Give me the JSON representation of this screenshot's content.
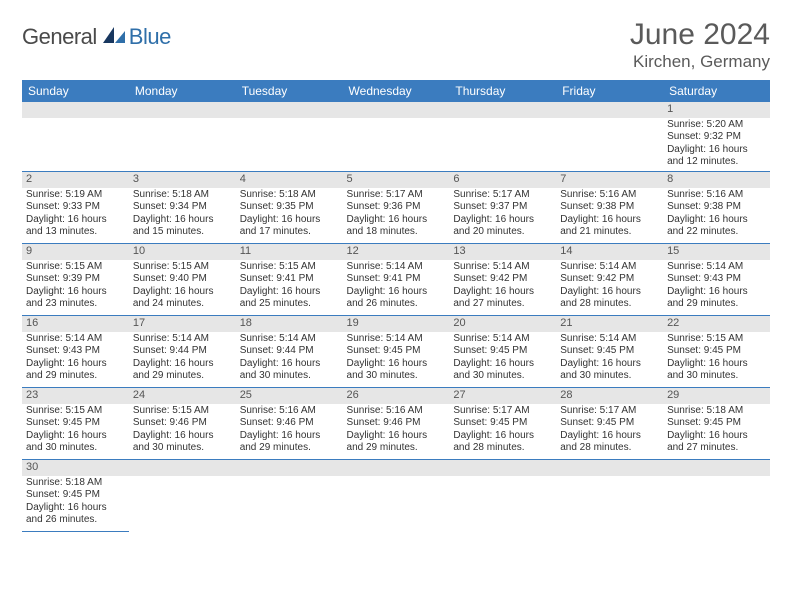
{
  "logo": {
    "dark": "General",
    "blue": "Blue"
  },
  "title": "June 2024",
  "location": "Kirchen, Germany",
  "colors": {
    "header_bg": "#3b7cbf",
    "header_fg": "#ffffff",
    "daylabel_bg": "#e6e6e6",
    "border": "#3b7cbf",
    "logo_blue": "#2f6fa9",
    "text": "#333333"
  },
  "weekdays": [
    "Sunday",
    "Monday",
    "Tuesday",
    "Wednesday",
    "Thursday",
    "Friday",
    "Saturday"
  ],
  "weeks": [
    [
      {
        "n": "",
        "sr": "",
        "ss": "",
        "dl": ""
      },
      {
        "n": "",
        "sr": "",
        "ss": "",
        "dl": ""
      },
      {
        "n": "",
        "sr": "",
        "ss": "",
        "dl": ""
      },
      {
        "n": "",
        "sr": "",
        "ss": "",
        "dl": ""
      },
      {
        "n": "",
        "sr": "",
        "ss": "",
        "dl": ""
      },
      {
        "n": "",
        "sr": "",
        "ss": "",
        "dl": ""
      },
      {
        "n": "1",
        "sr": "Sunrise: 5:20 AM",
        "ss": "Sunset: 9:32 PM",
        "dl": "Daylight: 16 hours and 12 minutes."
      }
    ],
    [
      {
        "n": "2",
        "sr": "Sunrise: 5:19 AM",
        "ss": "Sunset: 9:33 PM",
        "dl": "Daylight: 16 hours and 13 minutes."
      },
      {
        "n": "3",
        "sr": "Sunrise: 5:18 AM",
        "ss": "Sunset: 9:34 PM",
        "dl": "Daylight: 16 hours and 15 minutes."
      },
      {
        "n": "4",
        "sr": "Sunrise: 5:18 AM",
        "ss": "Sunset: 9:35 PM",
        "dl": "Daylight: 16 hours and 17 minutes."
      },
      {
        "n": "5",
        "sr": "Sunrise: 5:17 AM",
        "ss": "Sunset: 9:36 PM",
        "dl": "Daylight: 16 hours and 18 minutes."
      },
      {
        "n": "6",
        "sr": "Sunrise: 5:17 AM",
        "ss": "Sunset: 9:37 PM",
        "dl": "Daylight: 16 hours and 20 minutes."
      },
      {
        "n": "7",
        "sr": "Sunrise: 5:16 AM",
        "ss": "Sunset: 9:38 PM",
        "dl": "Daylight: 16 hours and 21 minutes."
      },
      {
        "n": "8",
        "sr": "Sunrise: 5:16 AM",
        "ss": "Sunset: 9:38 PM",
        "dl": "Daylight: 16 hours and 22 minutes."
      }
    ],
    [
      {
        "n": "9",
        "sr": "Sunrise: 5:15 AM",
        "ss": "Sunset: 9:39 PM",
        "dl": "Daylight: 16 hours and 23 minutes."
      },
      {
        "n": "10",
        "sr": "Sunrise: 5:15 AM",
        "ss": "Sunset: 9:40 PM",
        "dl": "Daylight: 16 hours and 24 minutes."
      },
      {
        "n": "11",
        "sr": "Sunrise: 5:15 AM",
        "ss": "Sunset: 9:41 PM",
        "dl": "Daylight: 16 hours and 25 minutes."
      },
      {
        "n": "12",
        "sr": "Sunrise: 5:14 AM",
        "ss": "Sunset: 9:41 PM",
        "dl": "Daylight: 16 hours and 26 minutes."
      },
      {
        "n": "13",
        "sr": "Sunrise: 5:14 AM",
        "ss": "Sunset: 9:42 PM",
        "dl": "Daylight: 16 hours and 27 minutes."
      },
      {
        "n": "14",
        "sr": "Sunrise: 5:14 AM",
        "ss": "Sunset: 9:42 PM",
        "dl": "Daylight: 16 hours and 28 minutes."
      },
      {
        "n": "15",
        "sr": "Sunrise: 5:14 AM",
        "ss": "Sunset: 9:43 PM",
        "dl": "Daylight: 16 hours and 29 minutes."
      }
    ],
    [
      {
        "n": "16",
        "sr": "Sunrise: 5:14 AM",
        "ss": "Sunset: 9:43 PM",
        "dl": "Daylight: 16 hours and 29 minutes."
      },
      {
        "n": "17",
        "sr": "Sunrise: 5:14 AM",
        "ss": "Sunset: 9:44 PM",
        "dl": "Daylight: 16 hours and 29 minutes."
      },
      {
        "n": "18",
        "sr": "Sunrise: 5:14 AM",
        "ss": "Sunset: 9:44 PM",
        "dl": "Daylight: 16 hours and 30 minutes."
      },
      {
        "n": "19",
        "sr": "Sunrise: 5:14 AM",
        "ss": "Sunset: 9:45 PM",
        "dl": "Daylight: 16 hours and 30 minutes."
      },
      {
        "n": "20",
        "sr": "Sunrise: 5:14 AM",
        "ss": "Sunset: 9:45 PM",
        "dl": "Daylight: 16 hours and 30 minutes."
      },
      {
        "n": "21",
        "sr": "Sunrise: 5:14 AM",
        "ss": "Sunset: 9:45 PM",
        "dl": "Daylight: 16 hours and 30 minutes."
      },
      {
        "n": "22",
        "sr": "Sunrise: 5:15 AM",
        "ss": "Sunset: 9:45 PM",
        "dl": "Daylight: 16 hours and 30 minutes."
      }
    ],
    [
      {
        "n": "23",
        "sr": "Sunrise: 5:15 AM",
        "ss": "Sunset: 9:45 PM",
        "dl": "Daylight: 16 hours and 30 minutes."
      },
      {
        "n": "24",
        "sr": "Sunrise: 5:15 AM",
        "ss": "Sunset: 9:46 PM",
        "dl": "Daylight: 16 hours and 30 minutes."
      },
      {
        "n": "25",
        "sr": "Sunrise: 5:16 AM",
        "ss": "Sunset: 9:46 PM",
        "dl": "Daylight: 16 hours and 29 minutes."
      },
      {
        "n": "26",
        "sr": "Sunrise: 5:16 AM",
        "ss": "Sunset: 9:46 PM",
        "dl": "Daylight: 16 hours and 29 minutes."
      },
      {
        "n": "27",
        "sr": "Sunrise: 5:17 AM",
        "ss": "Sunset: 9:45 PM",
        "dl": "Daylight: 16 hours and 28 minutes."
      },
      {
        "n": "28",
        "sr": "Sunrise: 5:17 AM",
        "ss": "Sunset: 9:45 PM",
        "dl": "Daylight: 16 hours and 28 minutes."
      },
      {
        "n": "29",
        "sr": "Sunrise: 5:18 AM",
        "ss": "Sunset: 9:45 PM",
        "dl": "Daylight: 16 hours and 27 minutes."
      }
    ],
    [
      {
        "n": "30",
        "sr": "Sunrise: 5:18 AM",
        "ss": "Sunset: 9:45 PM",
        "dl": "Daylight: 16 hours and 26 minutes."
      },
      {
        "n": "",
        "sr": "",
        "ss": "",
        "dl": ""
      },
      {
        "n": "",
        "sr": "",
        "ss": "",
        "dl": ""
      },
      {
        "n": "",
        "sr": "",
        "ss": "",
        "dl": ""
      },
      {
        "n": "",
        "sr": "",
        "ss": "",
        "dl": ""
      },
      {
        "n": "",
        "sr": "",
        "ss": "",
        "dl": ""
      },
      {
        "n": "",
        "sr": "",
        "ss": "",
        "dl": ""
      }
    ]
  ]
}
